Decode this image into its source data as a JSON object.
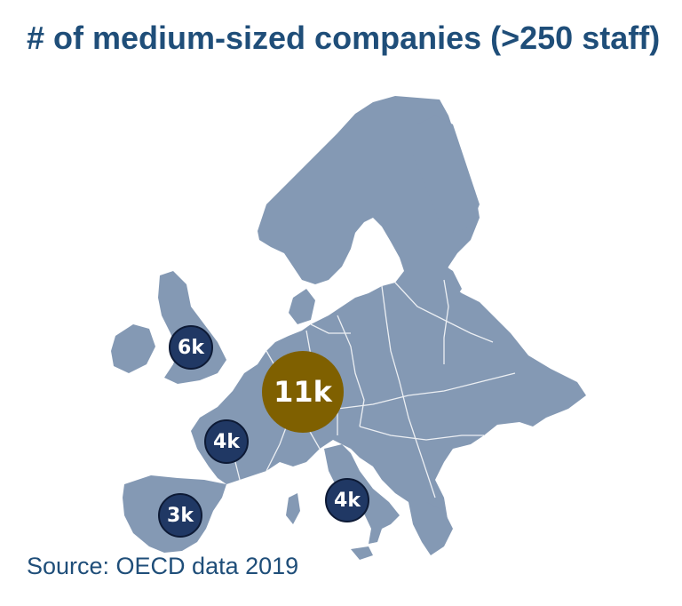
{
  "title": "# of medium-sized companies (>250 staff)",
  "source": "Source: OECD data 2019",
  "colors": {
    "title": "#1f4e79",
    "source": "#1f4e79",
    "land": "#8499b4",
    "border": "#ffffff",
    "bubble_small": "#203864",
    "bubble_big": "#7f6000"
  },
  "markers": [
    {
      "id": "uk",
      "label": "6k",
      "value_thousands": 6
    },
    {
      "id": "germany",
      "label": "11k",
      "value_thousands": 11
    },
    {
      "id": "france",
      "label": "4k",
      "value_thousands": 4
    },
    {
      "id": "spain",
      "label": "3k",
      "value_thousands": 3
    },
    {
      "id": "italy",
      "label": "4k",
      "value_thousands": 4
    }
  ]
}
